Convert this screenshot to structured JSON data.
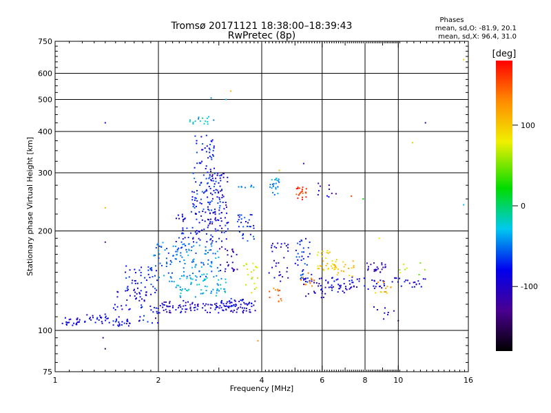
{
  "chart_data": {
    "type": "scatter",
    "title": "Tromsø 20171121 18:38:00–18:39:43",
    "subtitle": "RwPretec (8p)",
    "xlabel": "Frequency [MHz]",
    "ylabel": "Stationary phase Virtual Height [km]",
    "x_scale": "log",
    "y_scale": "log",
    "xlim": [
      1,
      16
    ],
    "ylim": [
      75,
      750
    ],
    "x_ticks": [
      1,
      2,
      4,
      6,
      8,
      10,
      16
    ],
    "x_tick_labels": [
      "1",
      "2",
      "4",
      "6",
      "8",
      "10",
      "16"
    ],
    "y_ticks": [
      75,
      100,
      200,
      300,
      400,
      500,
      600,
      750
    ],
    "y_tick_labels": [
      "75",
      "100",
      "200",
      "300",
      "400",
      "500",
      "600",
      "750"
    ],
    "grid": true,
    "stats": {
      "heading": "Phases",
      "line1": "mean, sd,O: -81.9, 20.1",
      "line2": "mean, sd,X:  96.4, 31.0"
    },
    "colorbar": {
      "label": "[deg]",
      "range": [
        -180,
        180
      ],
      "ticks": [
        100,
        0,
        -100
      ],
      "tick_labels": [
        "100",
        "0",
        "-100"
      ]
    },
    "clusters": [
      {
        "f": [
          1.05,
          1.18
        ],
        "h": [
          103,
          110
        ],
        "phase": -90,
        "n": 22
      },
      {
        "f": [
          1.22,
          1.45
        ],
        "h": [
          104,
          112
        ],
        "phase": -85,
        "n": 25
      },
      {
        "f": [
          1.45,
          1.7
        ],
        "h": [
          103,
          110
        ],
        "phase": -85,
        "n": 22
      },
      {
        "f": [
          1.7,
          2.0
        ],
        "h": [
          105,
          120
        ],
        "phase": -80,
        "n": 20
      },
      {
        "f": [
          1.48,
          1.85
        ],
        "h": [
          115,
          135
        ],
        "phase": -95,
        "n": 30
      },
      {
        "f": [
          1.6,
          2.0
        ],
        "h": [
          128,
          158
        ],
        "phase": -75,
        "n": 45
      },
      {
        "f": [
          1.9,
          2.25
        ],
        "h": [
          140,
          185
        ],
        "phase": -55,
        "n": 45
      },
      {
        "f": [
          2.0,
          3.9
        ],
        "h": [
          113,
          123
        ],
        "phase": -95,
        "n": 120
      },
      {
        "f": [
          2.25,
          3.2
        ],
        "h": [
          125,
          145
        ],
        "phase": -30,
        "n": 60
      },
      {
        "f": [
          2.25,
          3.0
        ],
        "h": [
          145,
          185
        ],
        "phase": -50,
        "n": 90
      },
      {
        "f": [
          2.25,
          3.2
        ],
        "h": [
          185,
          230
        ],
        "phase": -80,
        "n": 90
      },
      {
        "f": [
          2.5,
          3.1
        ],
        "h": [
          230,
          300
        ],
        "phase": -70,
        "n": 80
      },
      {
        "f": [
          2.55,
          2.95
        ],
        "h": [
          300,
          390
        ],
        "phase": -75,
        "n": 40
      },
      {
        "f": [
          2.45,
          2.9
        ],
        "h": [
          420,
          445
        ],
        "phase": -30,
        "n": 16
      },
      {
        "f": [
          2.8,
          3.2
        ],
        "h": [
          210,
          300
        ],
        "phase": -105,
        "n": 40
      },
      {
        "f": [
          3.0,
          3.4
        ],
        "h": [
          150,
          180
        ],
        "phase": -110,
        "n": 25
      },
      {
        "f": [
          3.4,
          3.8
        ],
        "h": [
          185,
          225
        ],
        "phase": -70,
        "n": 30
      },
      {
        "f": [
          3.4,
          3.8
        ],
        "h": [
          270,
          275
        ],
        "phase": -50,
        "n": 8
      },
      {
        "f": [
          3.5,
          3.9
        ],
        "h": [
          130,
          160
        ],
        "phase": 75,
        "n": 20
      },
      {
        "f": [
          3.0,
          3.6
        ],
        "h": [
          115,
          125
        ],
        "phase": -80,
        "n": 25
      },
      {
        "f": [
          4.2,
          4.5
        ],
        "h": [
          255,
          290
        ],
        "phase": -40,
        "n": 22
      },
      {
        "f": [
          4.2,
          4.6
        ],
        "h": [
          122,
          135
        ],
        "phase": 135,
        "n": 12
      },
      {
        "f": [
          4.2,
          4.8
        ],
        "h": [
          140,
          185
        ],
        "phase": -95,
        "n": 30
      },
      {
        "f": [
          5.0,
          5.4
        ],
        "h": [
          248,
          272
        ],
        "phase": 160,
        "n": 22
      },
      {
        "f": [
          5.0,
          5.6
        ],
        "h": [
          140,
          190
        ],
        "phase": -70,
        "n": 40
      },
      {
        "f": [
          5.2,
          5.7
        ],
        "h": [
          135,
          150
        ],
        "phase": 140,
        "n": 12
      },
      {
        "f": [
          5.3,
          6.2
        ],
        "h": [
          125,
          145
        ],
        "phase": -100,
        "n": 25
      },
      {
        "f": [
          5.8,
          6.6
        ],
        "h": [
          150,
          175
        ],
        "phase": 90,
        "n": 30
      },
      {
        "f": [
          5.7,
          6.7
        ],
        "h": [
          250,
          280
        ],
        "phase": -100,
        "n": 10
      },
      {
        "f": [
          6.2,
          7.5
        ],
        "h": [
          130,
          145
        ],
        "phase": -90,
        "n": 30
      },
      {
        "f": [
          6.5,
          7.5
        ],
        "h": [
          145,
          165
        ],
        "phase": 100,
        "n": 22
      },
      {
        "f": [
          7.0,
          9.2
        ],
        "h": [
          133,
          145
        ],
        "phase": -95,
        "n": 30
      },
      {
        "f": [
          8.0,
          9.2
        ],
        "h": [
          150,
          160
        ],
        "phase": -110,
        "n": 22
      },
      {
        "f": [
          8.5,
          9.6
        ],
        "h": [
          128,
          140
        ],
        "phase": 110,
        "n": 12
      },
      {
        "f": [
          9.5,
          12.0
        ],
        "h": [
          135,
          145
        ],
        "phase": -90,
        "n": 22
      },
      {
        "f": [
          10.0,
          12.0
        ],
        "h": [
          145,
          160
        ],
        "phase": 60,
        "n": 8
      },
      {
        "f": [
          8.0,
          10.0
        ],
        "h": [
          108,
          118
        ],
        "phase": -100,
        "n": 8
      }
    ],
    "points": [
      {
        "f": 1.4,
        "h": 425,
        "phase": -100
      },
      {
        "f": 1.4,
        "h": 235,
        "phase": 110
      },
      {
        "f": 1.4,
        "h": 185,
        "phase": -130
      },
      {
        "f": 1.38,
        "h": 95,
        "phase": -120
      },
      {
        "f": 1.4,
        "h": 88,
        "phase": -150
      },
      {
        "f": 2.85,
        "h": 505,
        "phase": -40
      },
      {
        "f": 3.25,
        "h": 530,
        "phase": 110
      },
      {
        "f": 3.15,
        "h": 500,
        "phase": -30
      },
      {
        "f": 3.9,
        "h": 93,
        "phase": 130
      },
      {
        "f": 4.5,
        "h": 305,
        "phase": 110
      },
      {
        "f": 5.3,
        "h": 320,
        "phase": -110
      },
      {
        "f": 7.3,
        "h": 255,
        "phase": 160
      },
      {
        "f": 7.9,
        "h": 250,
        "phase": 20
      },
      {
        "f": 8.8,
        "h": 190,
        "phase": 80
      },
      {
        "f": 12.0,
        "h": 425,
        "phase": -110
      },
      {
        "f": 11.0,
        "h": 370,
        "phase": 100
      },
      {
        "f": 15.5,
        "h": 660,
        "phase": 90
      },
      {
        "f": 15.5,
        "h": 240,
        "phase": -30
      },
      {
        "f": 10.0,
        "h": 107,
        "phase": -150
      }
    ]
  }
}
